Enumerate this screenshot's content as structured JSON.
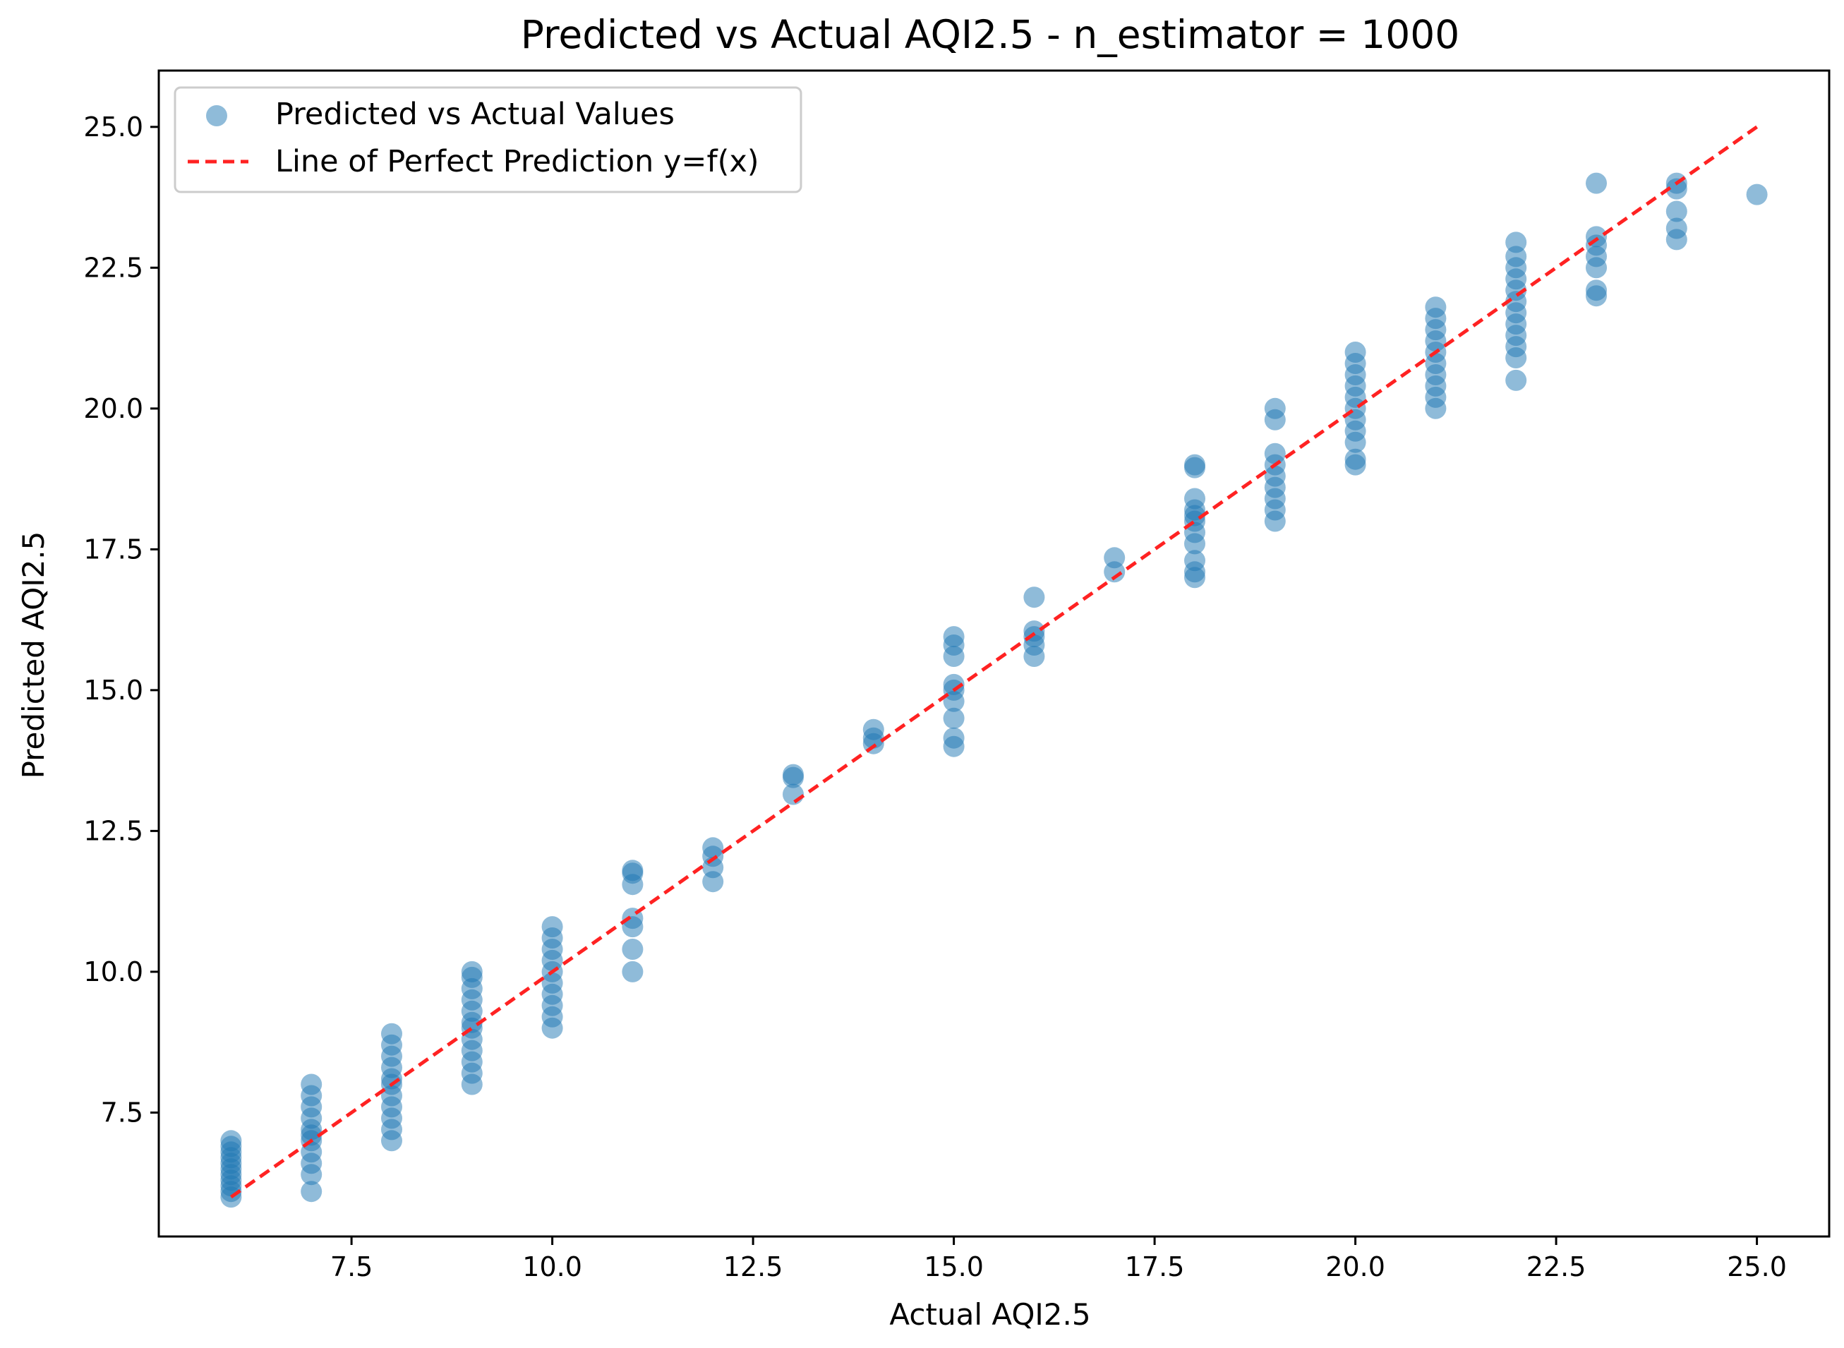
{
  "chart_data": {
    "type": "scatter",
    "title": "Predicted vs Actual AQI2.5 - n_estimator = 1000",
    "xlabel": "Actual AQI2.5",
    "ylabel": "Predicted AQI2.5",
    "xlim": [
      5.1,
      25.9
    ],
    "ylim": [
      5.3,
      26.0
    ],
    "xticks": [
      7.5,
      10.0,
      12.5,
      15.0,
      17.5,
      20.0,
      22.5,
      25.0
    ],
    "yticks": [
      7.5,
      10.0,
      12.5,
      15.0,
      17.5,
      20.0,
      22.5,
      25.0
    ],
    "xtick_labels": [
      "7.5",
      "10.0",
      "12.5",
      "15.0",
      "17.5",
      "20.0",
      "22.5",
      "25.0"
    ],
    "ytick_labels": [
      "7.5",
      "10.0",
      "12.5",
      "15.0",
      "17.5",
      "20.0",
      "22.5",
      "25.0"
    ],
    "grid": false,
    "legend_position": "top-left",
    "colors": {
      "points": "#1f77b4",
      "line": "#ff2222",
      "frame": "#000000"
    },
    "series": [
      {
        "name": "Predicted vs Actual Values",
        "kind": "scatter",
        "points": [
          [
            6,
            6.0
          ],
          [
            6,
            6.1
          ],
          [
            6,
            6.2
          ],
          [
            6,
            6.3
          ],
          [
            6,
            6.4
          ],
          [
            6,
            6.5
          ],
          [
            6,
            6.6
          ],
          [
            6,
            6.7
          ],
          [
            6,
            6.8
          ],
          [
            6,
            6.9
          ],
          [
            6,
            7.0
          ],
          [
            7,
            6.1
          ],
          [
            7,
            6.4
          ],
          [
            7,
            6.6
          ],
          [
            7,
            6.8
          ],
          [
            7,
            7.0
          ],
          [
            7,
            7.1
          ],
          [
            7,
            7.2
          ],
          [
            7,
            7.4
          ],
          [
            7,
            7.6
          ],
          [
            7,
            7.8
          ],
          [
            7,
            8.0
          ],
          [
            8,
            7.0
          ],
          [
            8,
            7.2
          ],
          [
            8,
            7.4
          ],
          [
            8,
            7.6
          ],
          [
            8,
            7.8
          ],
          [
            8,
            8.0
          ],
          [
            8,
            8.1
          ],
          [
            8,
            8.3
          ],
          [
            8,
            8.5
          ],
          [
            8,
            8.7
          ],
          [
            8,
            8.9
          ],
          [
            9,
            8.0
          ],
          [
            9,
            8.2
          ],
          [
            9,
            8.4
          ],
          [
            9,
            8.6
          ],
          [
            9,
            8.8
          ],
          [
            9,
            9.0
          ],
          [
            9,
            9.1
          ],
          [
            9,
            9.3
          ],
          [
            9,
            9.5
          ],
          [
            9,
            9.7
          ],
          [
            9,
            9.9
          ],
          [
            9,
            10.0
          ],
          [
            10,
            9.0
          ],
          [
            10,
            9.2
          ],
          [
            10,
            9.4
          ],
          [
            10,
            9.6
          ],
          [
            10,
            9.8
          ],
          [
            10,
            10.0
          ],
          [
            10,
            10.2
          ],
          [
            10,
            10.4
          ],
          [
            10,
            10.6
          ],
          [
            10,
            10.8
          ],
          [
            11,
            10.0
          ],
          [
            11,
            10.4
          ],
          [
            11,
            10.8
          ],
          [
            11,
            10.95
          ],
          [
            11,
            11.55
          ],
          [
            11,
            11.75
          ],
          [
            11,
            11.8
          ],
          [
            12,
            11.6
          ],
          [
            12,
            11.85
          ],
          [
            12,
            12.05
          ],
          [
            12,
            12.2
          ],
          [
            13,
            13.15
          ],
          [
            13,
            13.45
          ],
          [
            13,
            13.5
          ],
          [
            14,
            14.05
          ],
          [
            14,
            14.15
          ],
          [
            14,
            14.3
          ],
          [
            15,
            14.0
          ],
          [
            15,
            14.15
          ],
          [
            15,
            14.5
          ],
          [
            15,
            14.8
          ],
          [
            15,
            15.0
          ],
          [
            15,
            15.1
          ],
          [
            15,
            15.6
          ],
          [
            15,
            15.8
          ],
          [
            15,
            15.95
          ],
          [
            16,
            15.6
          ],
          [
            16,
            15.8
          ],
          [
            16,
            15.95
          ],
          [
            16,
            16.05
          ],
          [
            16,
            16.65
          ],
          [
            17,
            17.1
          ],
          [
            17,
            17.35
          ],
          [
            18,
            17.0
          ],
          [
            18,
            17.1
          ],
          [
            18,
            17.3
          ],
          [
            18,
            17.6
          ],
          [
            18,
            17.8
          ],
          [
            18,
            18.0
          ],
          [
            18,
            18.1
          ],
          [
            18,
            18.2
          ],
          [
            18,
            18.4
          ],
          [
            18,
            18.95
          ],
          [
            18,
            19.0
          ],
          [
            19,
            18.0
          ],
          [
            19,
            18.2
          ],
          [
            19,
            18.4
          ],
          [
            19,
            18.6
          ],
          [
            19,
            18.8
          ],
          [
            19,
            19.0
          ],
          [
            19,
            19.2
          ],
          [
            19,
            19.8
          ],
          [
            19,
            20.0
          ],
          [
            20,
            19.0
          ],
          [
            20,
            19.1
          ],
          [
            20,
            19.4
          ],
          [
            20,
            19.6
          ],
          [
            20,
            19.8
          ],
          [
            20,
            20.0
          ],
          [
            20,
            20.2
          ],
          [
            20,
            20.4
          ],
          [
            20,
            20.6
          ],
          [
            20,
            20.8
          ],
          [
            20,
            21.0
          ],
          [
            21,
            20.0
          ],
          [
            21,
            20.2
          ],
          [
            21,
            20.4
          ],
          [
            21,
            20.6
          ],
          [
            21,
            20.8
          ],
          [
            21,
            21.0
          ],
          [
            21,
            21.2
          ],
          [
            21,
            21.4
          ],
          [
            21,
            21.6
          ],
          [
            21,
            21.8
          ],
          [
            22,
            20.5
          ],
          [
            22,
            20.9
          ],
          [
            22,
            21.1
          ],
          [
            22,
            21.3
          ],
          [
            22,
            21.5
          ],
          [
            22,
            21.7
          ],
          [
            22,
            21.9
          ],
          [
            22,
            22.1
          ],
          [
            22,
            22.3
          ],
          [
            22,
            22.5
          ],
          [
            22,
            22.7
          ],
          [
            22,
            22.95
          ],
          [
            23,
            22.0
          ],
          [
            23,
            22.1
          ],
          [
            23,
            22.5
          ],
          [
            23,
            22.7
          ],
          [
            23,
            22.9
          ],
          [
            23,
            23.05
          ],
          [
            23,
            24.0
          ],
          [
            24,
            23.0
          ],
          [
            24,
            23.2
          ],
          [
            24,
            23.5
          ],
          [
            24,
            23.9
          ],
          [
            24,
            24.0
          ],
          [
            25,
            23.8
          ]
        ]
      },
      {
        "name": "Line of Perfect Prediction y=f(x)",
        "kind": "line",
        "style": "dashed",
        "x": [
          6,
          25
        ],
        "y": [
          6,
          25
        ]
      }
    ]
  }
}
